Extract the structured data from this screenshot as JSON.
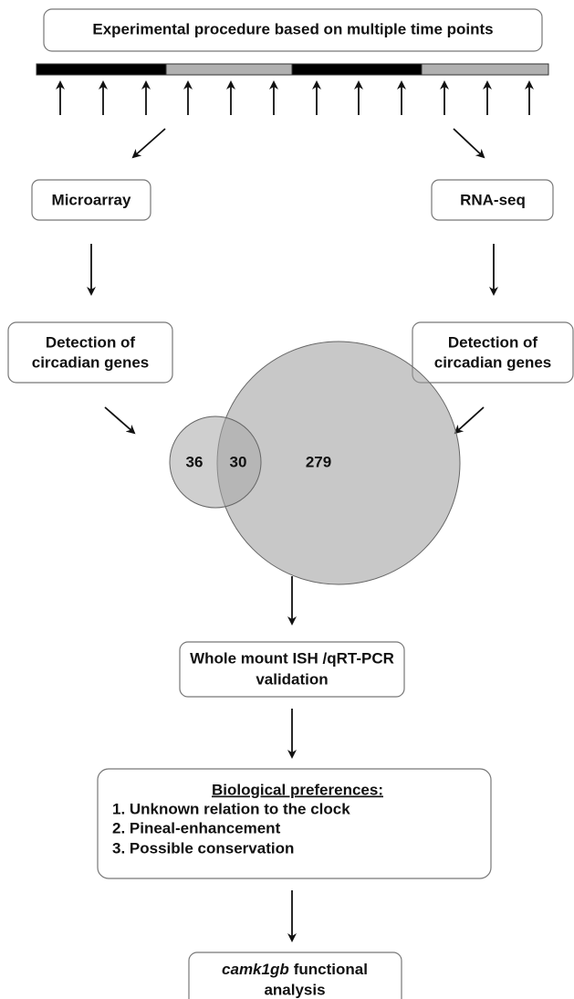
{
  "header": {
    "title": "Experimental procedure based on multiple time points"
  },
  "left": {
    "method": "Microarray",
    "detection": [
      "Detection of",
      "circadian genes"
    ]
  },
  "right": {
    "method": "RNA-seq",
    "detection": [
      "Detection of",
      "circadian genes"
    ]
  },
  "venn": {
    "left_only": 36,
    "overlap": 30,
    "right_only": 279
  },
  "validation": {
    "lines": [
      "Whole mount ISH /qRT-PCR",
      "validation"
    ]
  },
  "preferences": {
    "heading": "Biological preferences:",
    "items": [
      "1. Unknown relation to the clock",
      "2. Pineal-enhancement",
      "3. Possible conservation"
    ]
  },
  "final": {
    "gene": "camk1gb",
    "rest": "functional",
    "line2": "analysis"
  }
}
